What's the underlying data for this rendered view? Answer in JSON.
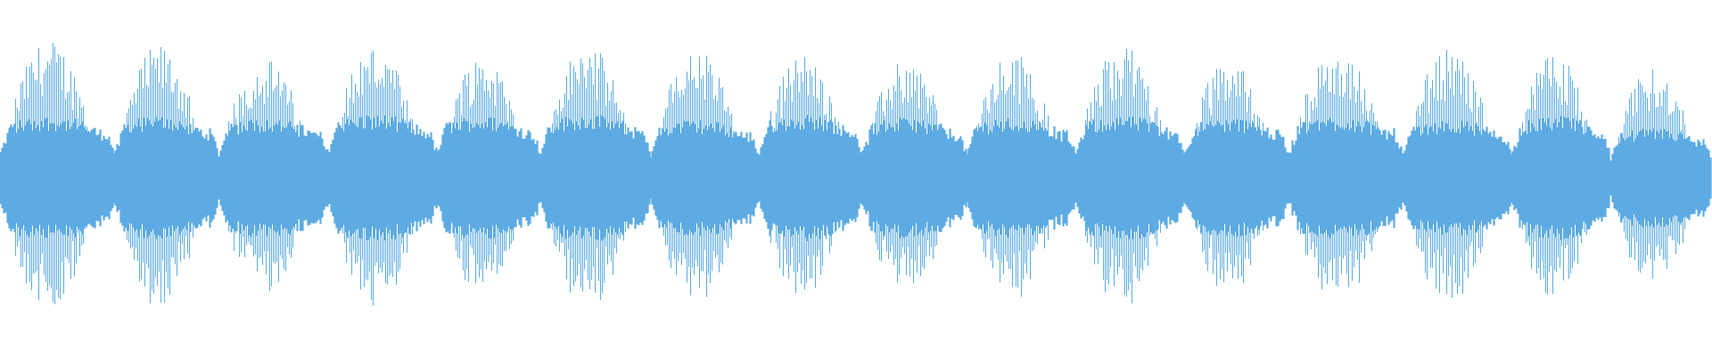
{
  "waveform": {
    "color": "#5dabe2",
    "background": "#ffffff",
    "segment_count": 16
  }
}
